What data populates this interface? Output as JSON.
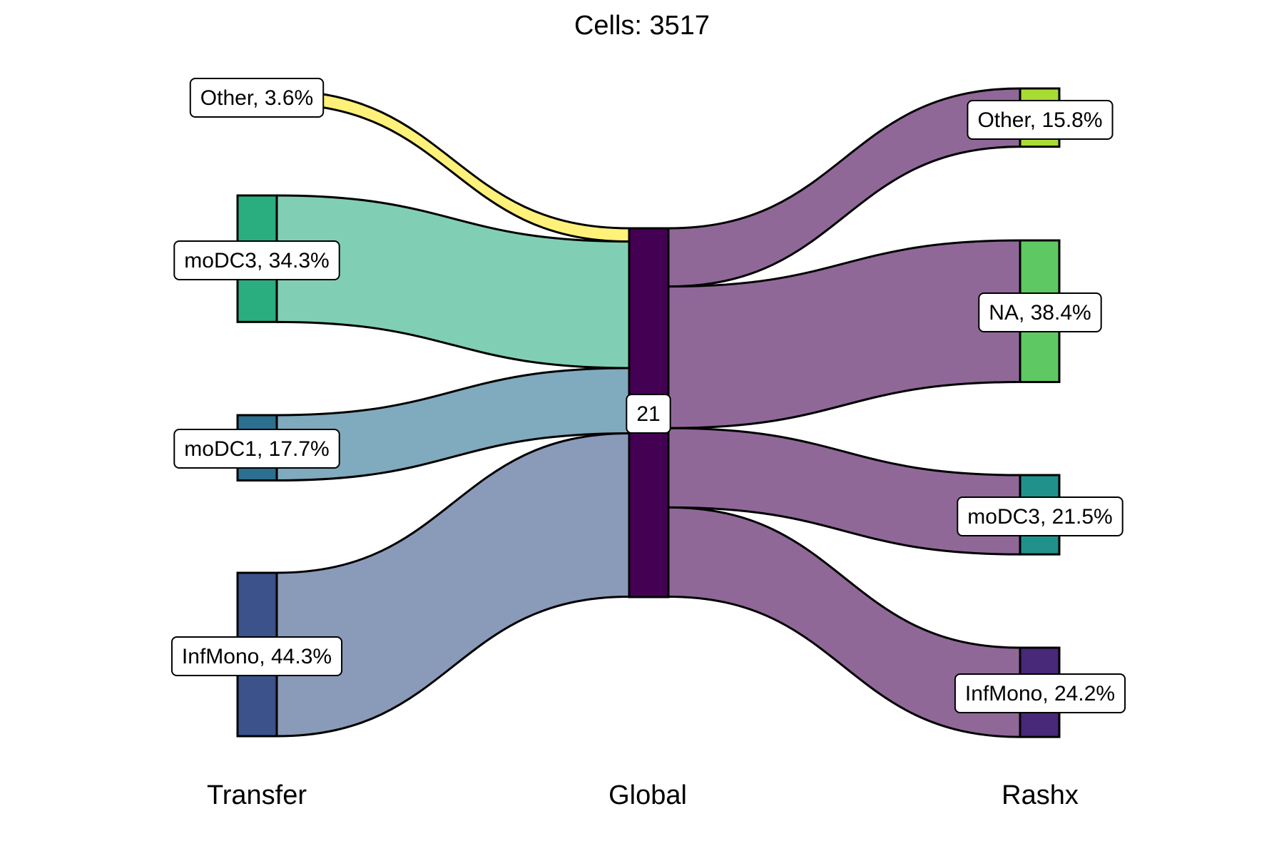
{
  "title": "Cells:  3517",
  "axes": [
    "Transfer",
    "Global",
    "Rashx"
  ],
  "chart_data": {
    "type": "sankey",
    "title": "Cells:  3517",
    "total_cells": 3517,
    "columns": [
      "Transfer",
      "Global",
      "Rashx"
    ],
    "left_nodes": [
      {
        "name": "Other",
        "pct": 3.6,
        "label": "Other, 3.6%",
        "color": "#FDE725"
      },
      {
        "name": "moDC3",
        "pct": 34.3,
        "label": "moDC3, 34.3%",
        "color": "#2AAE80"
      },
      {
        "name": "moDC1",
        "pct": 17.7,
        "label": "moDC1, 17.7%",
        "color": "#2C6F8E"
      },
      {
        "name": "InfMono",
        "pct": 44.3,
        "label": "InfMono, 44.3%",
        "color": "#3B528B"
      }
    ],
    "middle_node": {
      "name": "21",
      "label": "21",
      "pct": 100,
      "color": "#440154"
    },
    "right_nodes": [
      {
        "name": "Other",
        "pct": 15.8,
        "label": "Other, 15.8%",
        "color": "#A8DB34"
      },
      {
        "name": "NA",
        "pct": 38.4,
        "label": "NA, 38.4%",
        "color": "#5EC962"
      },
      {
        "name": "moDC3",
        "pct": 21.5,
        "label": "moDC3, 21.5%",
        "color": "#21918C"
      },
      {
        "name": "InfMono",
        "pct": 24.2,
        "label": "InfMono, 24.2%",
        "color": "#482878"
      }
    ],
    "left_flow_colors": [
      "#FFF17A",
      "#80CFB4",
      "#80AABD",
      "#8A9AB9"
    ],
    "right_flow_color": "#8F6898"
  }
}
